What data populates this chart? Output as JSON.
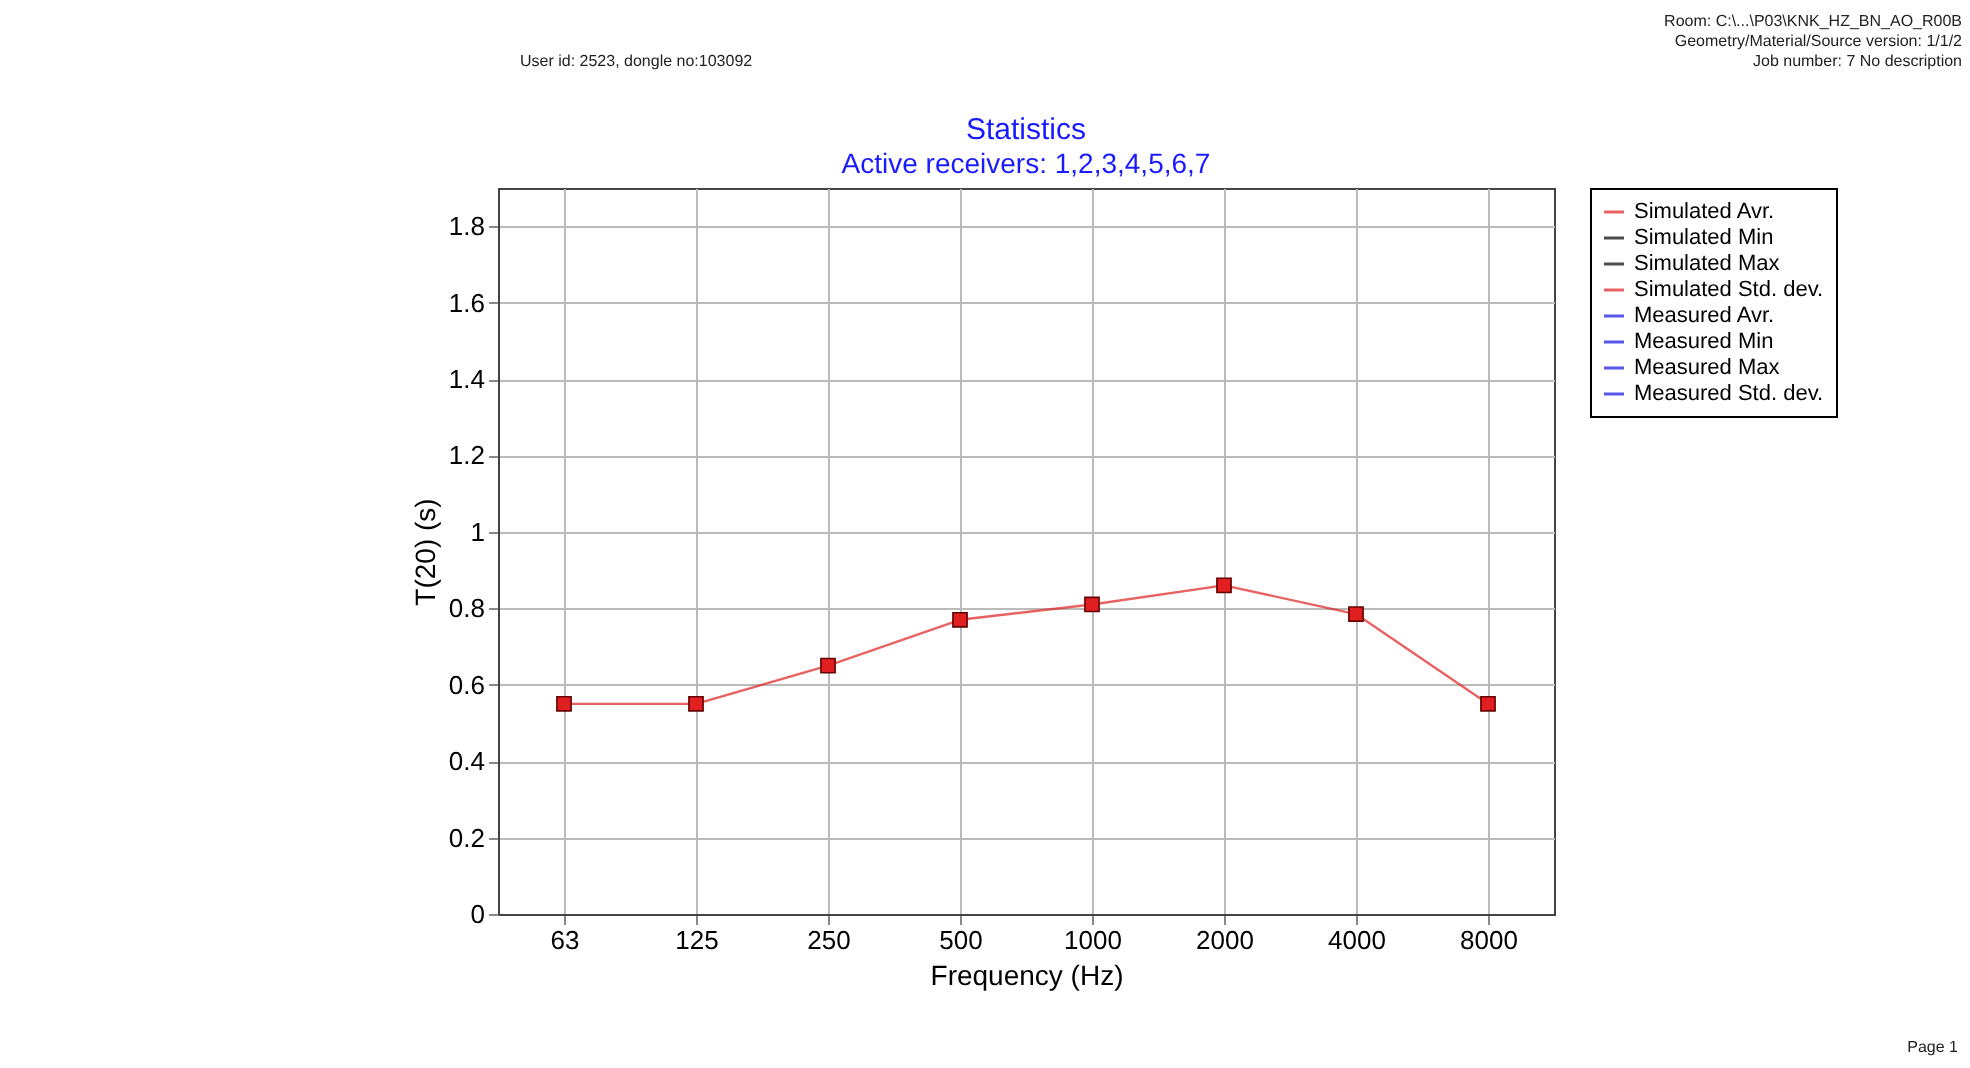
{
  "chart_data": {
    "type": "line",
    "title": "Statistics",
    "subtitle": "Active receivers: 1,2,3,4,5,6,7",
    "xlabel": "Frequency (Hz)",
    "ylabel": "T(20) (s)",
    "categories": [
      "63",
      "125",
      "250",
      "500",
      "1000",
      "2000",
      "4000",
      "8000"
    ],
    "series": [
      {
        "name": "Simulated Avr.",
        "color": "#e02020",
        "values": [
          0.55,
          0.55,
          0.65,
          0.77,
          0.81,
          0.86,
          0.785,
          0.55
        ]
      },
      {
        "name": "Simulated Min",
        "color": "#000000",
        "values": [
          null,
          null,
          null,
          null,
          null,
          null,
          null,
          null
        ]
      },
      {
        "name": "Simulated Max",
        "color": "#000000",
        "values": [
          null,
          null,
          null,
          null,
          null,
          null,
          null,
          null
        ]
      },
      {
        "name": "Simulated Std. dev.",
        "color": "#e02020",
        "values": [
          null,
          null,
          null,
          null,
          null,
          null,
          null,
          null
        ]
      },
      {
        "name": "Measured Avr.",
        "color": "#1010e0",
        "values": [
          null,
          null,
          null,
          null,
          null,
          null,
          null,
          null
        ]
      },
      {
        "name": "Measured Min",
        "color": "#1010e0",
        "values": [
          null,
          null,
          null,
          null,
          null,
          null,
          null,
          null
        ]
      },
      {
        "name": "Measured Max",
        "color": "#1010e0",
        "values": [
          null,
          null,
          null,
          null,
          null,
          null,
          null,
          null
        ]
      },
      {
        "name": "Measured Std. dev.",
        "color": "#1010e0",
        "values": [
          null,
          null,
          null,
          null,
          null,
          null,
          null,
          null
        ]
      }
    ],
    "ylim": [
      0,
      1.9
    ],
    "yticks": [
      0,
      0.2,
      0.4,
      0.6,
      0.8,
      1,
      1.2,
      1.4,
      1.6,
      1.8
    ],
    "grid": true,
    "legend": "right",
    "marker": "square",
    "line_style": "solid",
    "annotations": [
      "User id: 2523, dongle no:103092",
      "Room: C:\\...\\P03\\KNK_HZ_BN_AO_R00B",
      "Geometry/Material/Source version: 1/1/2",
      "Job number: 7  No description",
      "Page 1"
    ]
  }
}
